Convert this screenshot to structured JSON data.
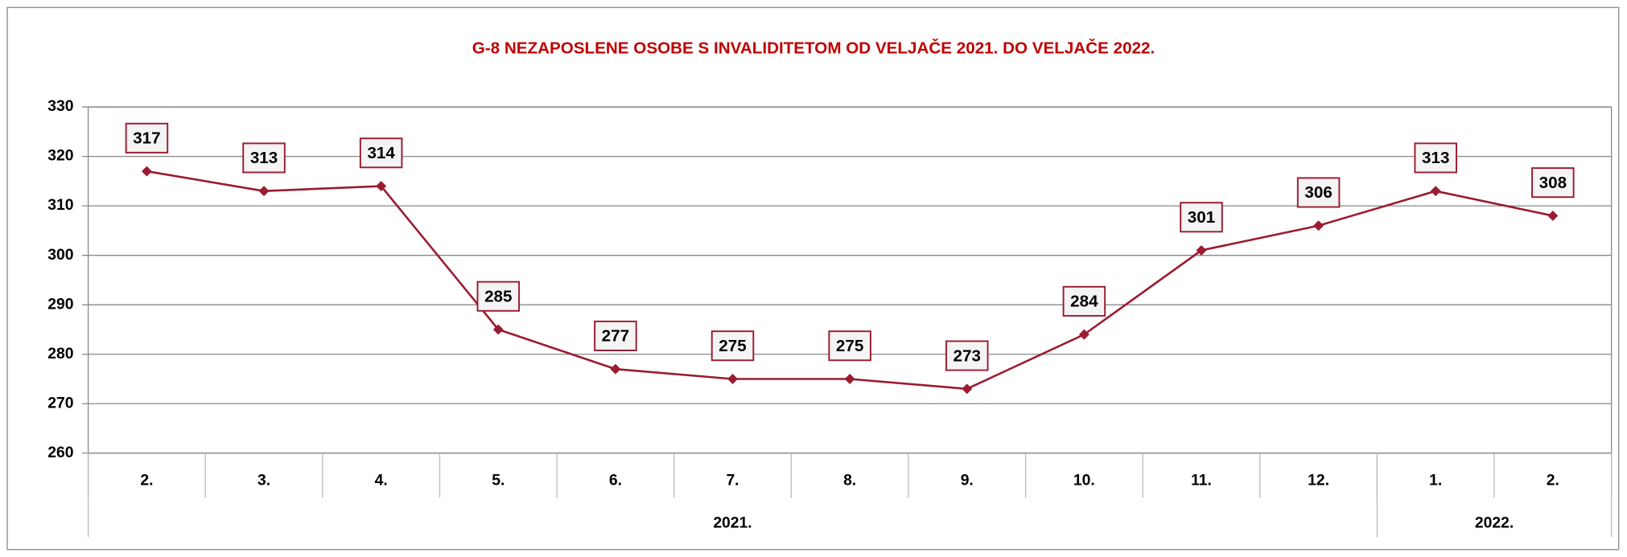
{
  "chart_data": {
    "type": "line",
    "title": "G-8 NEZAPOSLENE OSOBE S INVALIDITETOM OD VELJAČE 2021. DO VELJAČE 2022.",
    "categories": [
      "2.",
      "3.",
      "4.",
      "5.",
      "6.",
      "7.",
      "8.",
      "9.",
      "10.",
      "11.",
      "12.",
      "1.",
      "2."
    ],
    "x_groups": [
      {
        "label": "2021.",
        "count": 11
      },
      {
        "label": "2022.",
        "count": 2
      }
    ],
    "values": [
      317,
      313,
      314,
      285,
      277,
      275,
      275,
      273,
      284,
      301,
      306,
      313,
      308
    ],
    "color": "#9b1b30",
    "ylim": [
      260,
      330
    ],
    "yticks": [
      260,
      270,
      280,
      290,
      300,
      310,
      320,
      330
    ],
    "grid": true
  }
}
